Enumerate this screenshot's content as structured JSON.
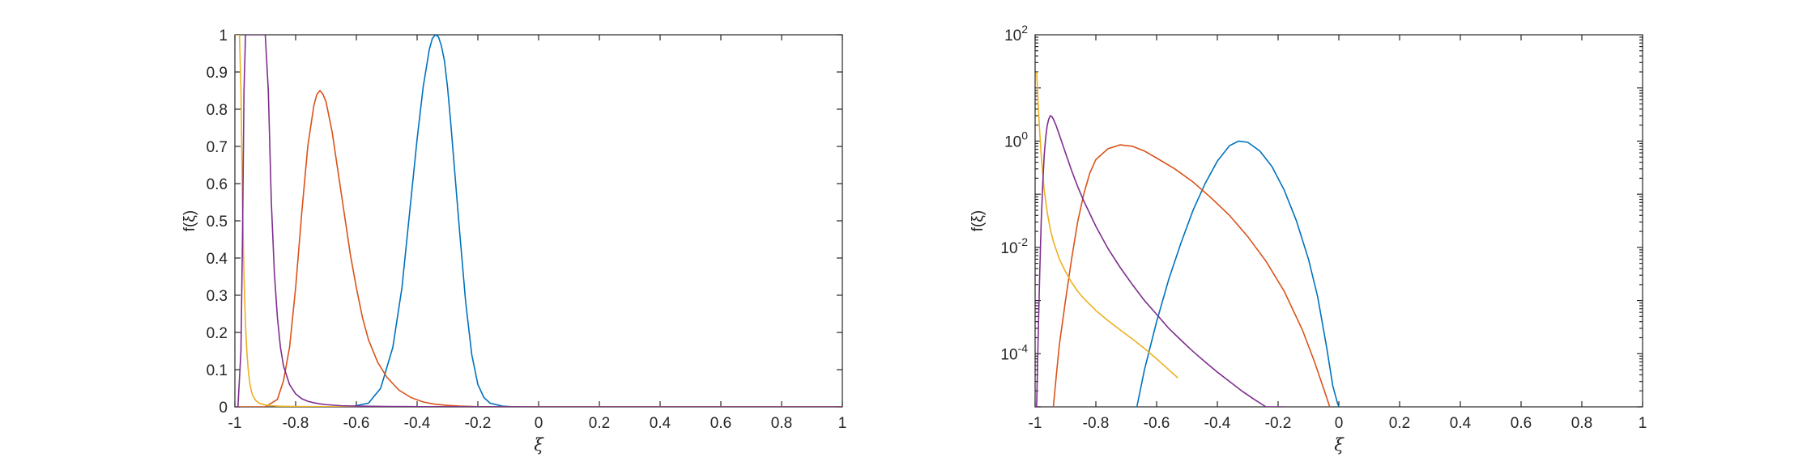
{
  "chart_data": [
    {
      "type": "line",
      "scale": "linear",
      "xlabel": "ξ",
      "ylabel": "f(ξ)",
      "xlim": [
        -1,
        1
      ],
      "ylim": [
        0,
        1
      ],
      "xticks": [
        "-1",
        "-0.8",
        "-0.6",
        "-0.4",
        "-0.2",
        "0",
        "0.2",
        "0.4",
        "0.6",
        "0.8",
        "1"
      ],
      "yticks": [
        "0",
        "0.1",
        "0.2",
        "0.3",
        "0.4",
        "0.5",
        "0.6",
        "0.7",
        "0.8",
        "0.9",
        "1"
      ],
      "series": [
        {
          "color": "#0072BD",
          "x": [
            -0.62,
            -0.56,
            -0.52,
            -0.48,
            -0.45,
            -0.42,
            -0.4,
            -0.38,
            -0.36,
            -0.35,
            -0.34,
            -0.33,
            -0.32,
            -0.31,
            -0.3,
            -0.29,
            -0.28,
            -0.26,
            -0.24,
            -0.22,
            -0.2,
            -0.18,
            -0.16,
            -0.12,
            -0.08,
            0,
            1
          ],
          "y": [
            0,
            0.01,
            0.05,
            0.16,
            0.32,
            0.56,
            0.72,
            0.86,
            0.96,
            0.99,
            1.0,
            0.995,
            0.97,
            0.93,
            0.86,
            0.77,
            0.67,
            0.47,
            0.28,
            0.14,
            0.06,
            0.025,
            0.01,
            0.002,
            0,
            0,
            0
          ]
        },
        {
          "color": "#D95319",
          "x": [
            -0.99,
            -0.9,
            -0.86,
            -0.84,
            -0.82,
            -0.8,
            -0.78,
            -0.76,
            -0.74,
            -0.73,
            -0.72,
            -0.71,
            -0.7,
            -0.68,
            -0.66,
            -0.64,
            -0.62,
            -0.6,
            -0.58,
            -0.56,
            -0.53,
            -0.5,
            -0.46,
            -0.42,
            -0.38,
            -0.34,
            -0.3,
            -0.26,
            -0.22,
            -0.18,
            -0.1,
            0,
            1
          ],
          "y": [
            0,
            0.0,
            0.02,
            0.07,
            0.16,
            0.32,
            0.52,
            0.7,
            0.81,
            0.84,
            0.85,
            0.84,
            0.82,
            0.74,
            0.63,
            0.52,
            0.41,
            0.32,
            0.24,
            0.18,
            0.12,
            0.08,
            0.045,
            0.025,
            0.013,
            0.007,
            0.004,
            0.002,
            0.001,
            0,
            0,
            0,
            0
          ]
        },
        {
          "color": "#EDB120",
          "x": [
            -1.0,
            -0.99,
            -0.985,
            -0.98,
            -0.975,
            -0.97,
            -0.965,
            -0.96,
            -0.955,
            -0.95,
            -0.945,
            -0.94,
            -0.93,
            -0.92,
            -0.9,
            -0.88,
            -0.86,
            -0.84,
            -0.8,
            -0.75,
            -0.7,
            -0.6,
            -0.5,
            0,
            1
          ],
          "y": [
            1.0,
            1.0,
            1.0,
            0.85,
            0.55,
            0.35,
            0.22,
            0.14,
            0.09,
            0.06,
            0.04,
            0.028,
            0.016,
            0.01,
            0.005,
            0.003,
            0.002,
            0.0015,
            0.001,
            0.0006,
            0.0004,
            0.0002,
            0.0001,
            0,
            0
          ]
        },
        {
          "color": "#7E2F8E",
          "x": [
            -1.0,
            -0.99,
            -0.98,
            -0.975,
            -0.97,
            -0.965,
            -0.96,
            -0.955,
            -0.95,
            -0.94,
            -0.93,
            -0.92,
            -0.91,
            -0.9,
            -0.89,
            -0.88,
            -0.87,
            -0.86,
            -0.85,
            -0.84,
            -0.82,
            -0.8,
            -0.78,
            -0.76,
            -0.74,
            -0.72,
            -0.7,
            -0.65,
            -0.6,
            -0.5,
            -0.4,
            0,
            1
          ],
          "y": [
            0,
            0.0,
            0.15,
            0.45,
            0.85,
            1.0,
            1.0,
            1.0,
            1.0,
            1.0,
            1.0,
            1.0,
            1.0,
            1.0,
            0.85,
            0.55,
            0.36,
            0.24,
            0.16,
            0.11,
            0.06,
            0.035,
            0.022,
            0.015,
            0.011,
            0.008,
            0.006,
            0.003,
            0.002,
            0.001,
            0.0005,
            0,
            0
          ]
        }
      ]
    },
    {
      "type": "line",
      "scale": "log-y",
      "xlabel": "ξ",
      "ylabel": "f(ξ)",
      "xlim": [
        -1,
        1
      ],
      "ylim": [
        1e-05,
        100
      ],
      "xticks": [
        "-1",
        "-0.8",
        "-0.6",
        "-0.4",
        "-0.2",
        "0",
        "0.2",
        "0.4",
        "0.6",
        "0.8",
        "1"
      ],
      "yticks": [
        {
          "base": "10",
          "exp": "2",
          "value": 100
        },
        {
          "base": "10",
          "exp": "0",
          "value": 1
        },
        {
          "base": "10",
          "exp": "-2",
          "value": 0.01
        },
        {
          "base": "10",
          "exp": "-4",
          "value": 0.0001
        }
      ],
      "series": [
        {
          "color": "#0072BD",
          "x": [
            -0.665,
            -0.64,
            -0.6,
            -0.56,
            -0.52,
            -0.48,
            -0.44,
            -0.4,
            -0.36,
            -0.33,
            -0.3,
            -0.26,
            -0.22,
            -0.18,
            -0.14,
            -0.1,
            -0.07,
            -0.04,
            -0.02,
            -0.005,
            0.0
          ],
          "y": [
            1e-05,
            5e-05,
            0.0004,
            0.0025,
            0.012,
            0.05,
            0.16,
            0.42,
            0.82,
            1.0,
            0.95,
            0.65,
            0.33,
            0.12,
            0.032,
            0.006,
            0.0012,
            0.00013,
            2.5e-05,
            1.2e-05,
            1e-05
          ]
        },
        {
          "color": "#D95319",
          "x": [
            -0.94,
            -0.93,
            -0.92,
            -0.9,
            -0.88,
            -0.86,
            -0.84,
            -0.82,
            -0.8,
            -0.76,
            -0.72,
            -0.68,
            -0.64,
            -0.6,
            -0.54,
            -0.48,
            -0.42,
            -0.36,
            -0.3,
            -0.24,
            -0.18,
            -0.12,
            -0.08,
            -0.05,
            -0.03
          ],
          "y": [
            1e-05,
            4e-05,
            0.00015,
            0.001,
            0.006,
            0.03,
            0.1,
            0.25,
            0.45,
            0.72,
            0.85,
            0.8,
            0.65,
            0.48,
            0.3,
            0.17,
            0.085,
            0.04,
            0.016,
            0.0055,
            0.0015,
            0.00028,
            7e-05,
            2.2e-05,
            1e-05
          ]
        },
        {
          "color": "#EDB120",
          "x": [
            -0.995,
            -0.99,
            -0.985,
            -0.98,
            -0.975,
            -0.97,
            -0.96,
            -0.95,
            -0.94,
            -0.92,
            -0.9,
            -0.88,
            -0.86,
            -0.84,
            -0.8,
            -0.76,
            -0.72,
            -0.68,
            -0.64,
            -0.6,
            -0.56,
            -0.53
          ],
          "y": [
            20.0,
            5.0,
            1.5,
            0.55,
            0.25,
            0.12,
            0.045,
            0.022,
            0.013,
            0.006,
            0.0035,
            0.0022,
            0.0015,
            0.0011,
            0.00065,
            0.00042,
            0.00028,
            0.00019,
            0.000125,
            8e-05,
            5e-05,
            3.5e-05
          ]
        },
        {
          "color": "#7E2F8E",
          "x": [
            -0.995,
            -0.99,
            -0.985,
            -0.98,
            -0.975,
            -0.97,
            -0.965,
            -0.96,
            -0.955,
            -0.95,
            -0.945,
            -0.94,
            -0.93,
            -0.92,
            -0.9,
            -0.88,
            -0.86,
            -0.84,
            -0.8,
            -0.76,
            -0.72,
            -0.68,
            -0.64,
            -0.6,
            -0.56,
            -0.52,
            -0.48,
            -0.44,
            -0.4,
            -0.36,
            -0.32,
            -0.28,
            -0.24,
            -0.2,
            -0.18
          ],
          "y": [
            1e-05,
            0.0002,
            0.003,
            0.03,
            0.15,
            0.55,
            1.2,
            2.0,
            2.6,
            3.0,
            2.9,
            2.6,
            1.9,
            1.3,
            0.6,
            0.28,
            0.14,
            0.075,
            0.025,
            0.0095,
            0.0042,
            0.002,
            0.001,
            0.00055,
            0.0003,
            0.00018,
            0.00011,
            7e-05,
            4.5e-05,
            3e-05,
            2e-05,
            1.4e-05,
            9.5e-06,
            6.2e-06,
            5e-06
          ]
        }
      ]
    }
  ]
}
